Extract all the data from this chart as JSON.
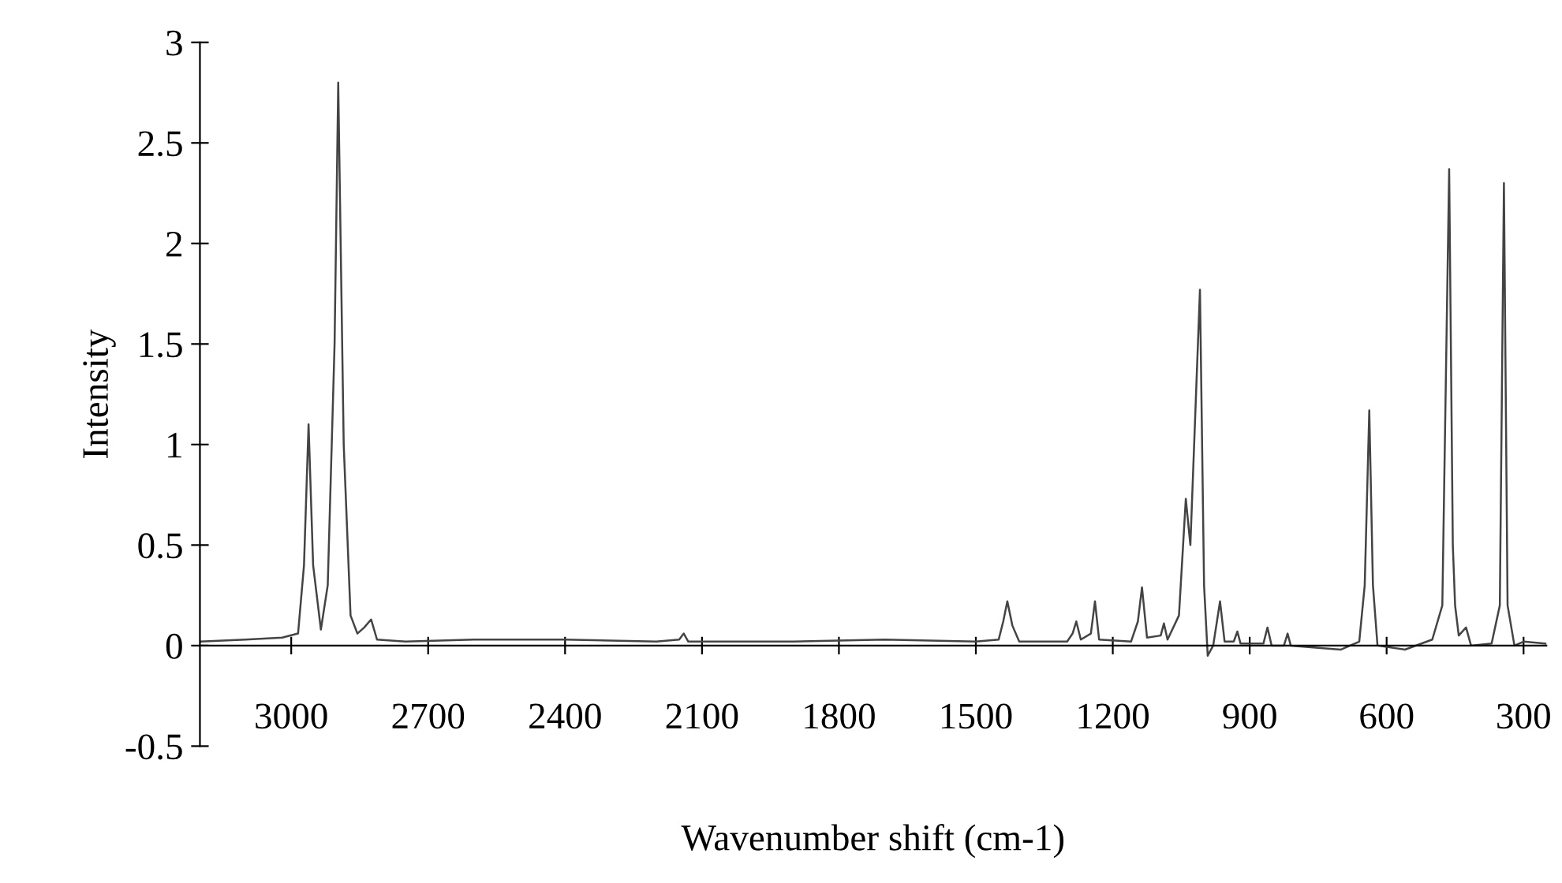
{
  "chart_data": {
    "type": "line",
    "xlabel": "Wavenumber shift (cm-1)",
    "ylabel": "Intensity",
    "xlim": [
      3200,
      250
    ],
    "xticks": [
      3000,
      2700,
      2400,
      2100,
      1800,
      1500,
      1200,
      900,
      600,
      300
    ],
    "ylim": [
      -0.5,
      3
    ],
    "yticks": [
      -0.5,
      0,
      0.5,
      1,
      1.5,
      2,
      2.5,
      3
    ],
    "grid": false,
    "marker": "none",
    "line_style": "solid",
    "series": [
      {
        "color": "#444444",
        "x": [
          3200,
          3100,
          3020,
          2985,
          2972,
          2962,
          2952,
          2935,
          2920,
          2905,
          2897,
          2885,
          2870,
          2855,
          2840,
          2825,
          2812,
          2750,
          2600,
          2400,
          2200,
          2150,
          2140,
          2130,
          1900,
          1700,
          1500,
          1450,
          1440,
          1431,
          1420,
          1405,
          1300,
          1288,
          1280,
          1270,
          1248,
          1239,
          1230,
          1160,
          1145,
          1136,
          1125,
          1095,
          1088,
          1080,
          1055,
          1040,
          1030,
          1009,
          1000,
          992,
          980,
          965,
          955,
          935,
          927,
          920,
          870,
          861,
          852,
          825,
          817,
          810,
          700,
          660,
          648,
          638,
          630,
          620,
          560,
          500,
          478,
          463,
          455,
          450,
          442,
          426,
          415,
          370,
          352,
          343,
          335,
          320,
          300,
          250
        ],
        "values": [
          0.02,
          0.03,
          0.04,
          0.06,
          0.4,
          1.1,
          0.4,
          0.08,
          0.3,
          1.5,
          2.8,
          1.0,
          0.15,
          0.06,
          0.09,
          0.13,
          0.03,
          0.02,
          0.03,
          0.03,
          0.02,
          0.03,
          0.06,
          0.02,
          0.02,
          0.03,
          0.02,
          0.03,
          0.12,
          0.22,
          0.1,
          0.02,
          0.02,
          0.06,
          0.12,
          0.03,
          0.06,
          0.22,
          0.03,
          0.02,
          0.12,
          0.29,
          0.04,
          0.05,
          0.11,
          0.03,
          0.15,
          0.73,
          0.5,
          1.77,
          0.3,
          -0.05,
          0.0,
          0.22,
          0.02,
          0.02,
          0.07,
          0.01,
          0.01,
          0.09,
          0.0,
          0.0,
          0.06,
          0.0,
          -0.02,
          0.02,
          0.3,
          1.17,
          0.3,
          0.0,
          -0.02,
          0.03,
          0.2,
          2.37,
          0.5,
          0.2,
          0.05,
          0.09,
          0.0,
          0.01,
          0.2,
          2.3,
          0.2,
          0.0,
          0.02,
          0.01
        ]
      }
    ]
  }
}
